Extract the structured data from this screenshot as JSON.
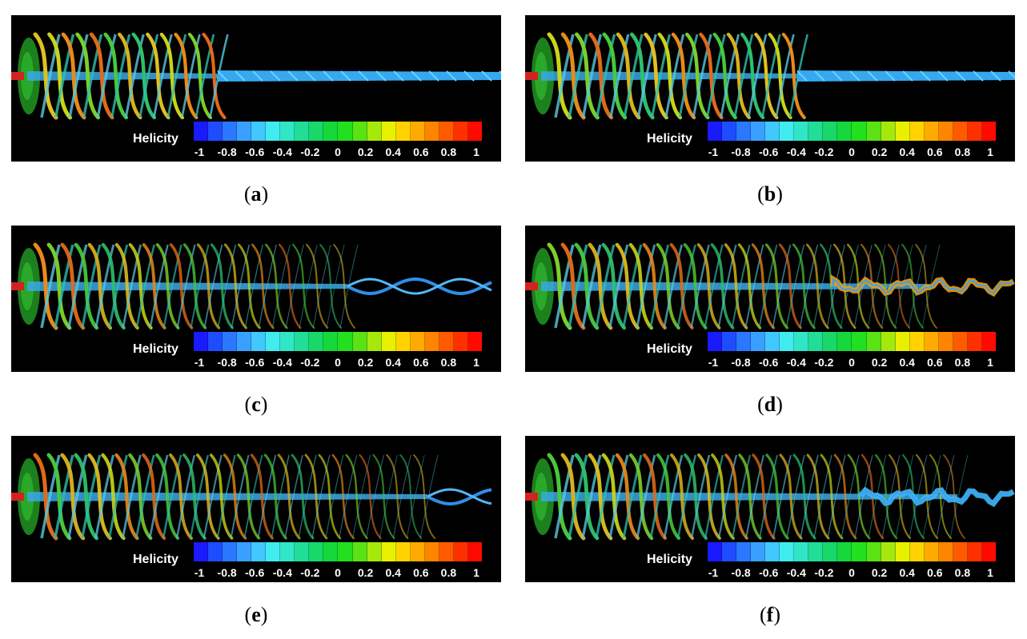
{
  "panels": [
    {
      "id": "a",
      "caption_letter": "a",
      "colorbar_title": "Helicity"
    },
    {
      "id": "b",
      "caption_letter": "b",
      "colorbar_title": "Helicity"
    },
    {
      "id": "c",
      "caption_letter": "c",
      "colorbar_title": "Helicity"
    },
    {
      "id": "d",
      "caption_letter": "d",
      "colorbar_title": "Helicity"
    },
    {
      "id": "e",
      "caption_letter": "e",
      "colorbar_title": "Helicity"
    },
    {
      "id": "f",
      "caption_letter": "f",
      "colorbar_title": "Helicity"
    }
  ],
  "colorbar": {
    "ticks": [
      "-1",
      "-0.8",
      "-0.6",
      "-0.4",
      "-0.2",
      "0",
      "0.2",
      "0.4",
      "0.6",
      "0.8",
      "1"
    ],
    "colors": [
      "#1a1aff",
      "#1e4dff",
      "#2a78ff",
      "#3aa0ff",
      "#40c8ff",
      "#40ecf0",
      "#30e6c6",
      "#20dd98",
      "#18d86a",
      "#16d83a",
      "#22e020",
      "#5ae214",
      "#a6e80c",
      "#e8f000",
      "#ffd200",
      "#ffaa00",
      "#ff8400",
      "#ff5a00",
      "#ff3000",
      "#ff0a00"
    ]
  }
}
